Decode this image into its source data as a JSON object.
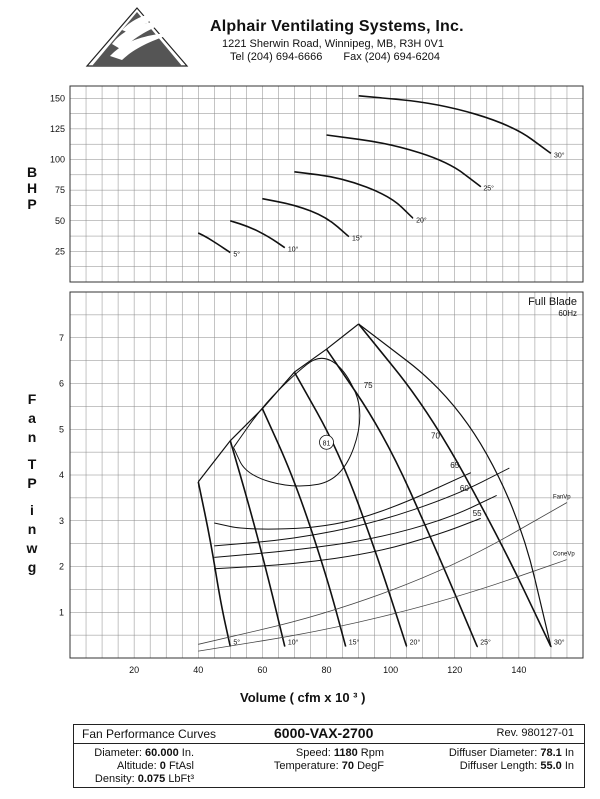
{
  "header": {
    "company": "Alphair Ventilating Systems, Inc.",
    "address": "1221 Sherwin Road, Winnipeg, MB, R3H 0V1",
    "tel": "Tel (204) 694-6666",
    "fax": "Fax (204) 694-6204"
  },
  "chart_data": [
    {
      "type": "line",
      "title": "",
      "ylabel": "BHP",
      "xlabel": "",
      "xlim": [
        0,
        160
      ],
      "ylim": [
        0,
        160
      ],
      "yticks": [
        "25",
        "50",
        "75",
        "100",
        "125",
        "150"
      ],
      "series": [
        {
          "name": "5°",
          "x": [
            40,
            43,
            46,
            50
          ],
          "y": [
            40,
            36,
            31,
            24
          ]
        },
        {
          "name": "10°",
          "x": [
            50,
            56,
            62,
            67
          ],
          "y": [
            50,
            45,
            37,
            28
          ]
        },
        {
          "name": "15°",
          "x": [
            60,
            70,
            80,
            87
          ],
          "y": [
            68,
            63,
            53,
            37
          ]
        },
        {
          "name": "20°",
          "x": [
            70,
            85,
            100,
            107
          ],
          "y": [
            90,
            85,
            70,
            52
          ]
        },
        {
          "name": "25°",
          "x": [
            80,
            100,
            118,
            128
          ],
          "y": [
            120,
            113,
            98,
            78
          ]
        },
        {
          "name": "30°",
          "x": [
            90,
            115,
            138,
            150
          ],
          "y": [
            152,
            146,
            128,
            105
          ]
        }
      ]
    },
    {
      "type": "line",
      "title": "Full Blade",
      "subtitle": "60Hz",
      "ylabel": "Fan TP in wg",
      "xlabel": "Volume ( cfm x 10 ³ )",
      "xlim": [
        0,
        160
      ],
      "ylim": [
        0,
        8
      ],
      "xticks": [
        "20",
        "40",
        "60",
        "80",
        "100",
        "120",
        "140"
      ],
      "yticks": [
        "1",
        "2",
        "3",
        "4",
        "5",
        "6",
        "7"
      ],
      "series": [
        {
          "name": "5°",
          "x": [
            40,
            44,
            47,
            50
          ],
          "y": [
            3.85,
            2.5,
            1.2,
            0.25
          ]
        },
        {
          "name": "10°",
          "x": [
            50,
            56,
            62,
            67
          ],
          "y": [
            4.75,
            3.3,
            1.7,
            0.25
          ]
        },
        {
          "name": "15°",
          "x": [
            60,
            70,
            80,
            86
          ],
          "y": [
            5.45,
            3.9,
            1.8,
            0.25
          ]
        },
        {
          "name": "20°",
          "x": [
            70,
            84,
            96,
            105
          ],
          "y": [
            6.25,
            4.5,
            2.2,
            0.25
          ]
        },
        {
          "name": "25°",
          "x": [
            80,
            98,
            114,
            127
          ],
          "y": [
            6.75,
            4.9,
            2.4,
            0.25
          ]
        },
        {
          "name": "30°",
          "x": [
            90,
            112,
            134,
            150
          ],
          "y": [
            7.3,
            5.4,
            2.6,
            0.25
          ]
        },
        {
          "name": "FanVp",
          "x": [
            40,
            80,
            120,
            155
          ],
          "y": [
            0.3,
            0.95,
            2.0,
            3.4
          ]
        },
        {
          "name": "ConeVp",
          "x": [
            40,
            80,
            120,
            155
          ],
          "y": [
            0.15,
            0.6,
            1.3,
            2.15
          ]
        }
      ],
      "efficiency_labels": [
        "81",
        "75",
        "70",
        "65",
        "60",
        "55"
      ]
    }
  ],
  "footer": {
    "title": "Fan Performance Curves",
    "model": "6000-VAX-2700",
    "rev": "Rev. 980127-01",
    "diameter_label": "Diameter:",
    "diameter_value": "60.000",
    "diameter_unit": "In.",
    "altitude_label": "Altitude:",
    "altitude_value": "0",
    "altitude_unit": "FtAsl",
    "density_label": "Density:",
    "density_value": "0.075",
    "density_unit": "LbFt³",
    "speed_label": "Speed:",
    "speed_value": "1180",
    "speed_unit": "Rpm",
    "temperature_label": "Temperature:",
    "temperature_value": "70",
    "temperature_unit": "DegF",
    "diffuser_diameter_label": "Diffuser Diameter:",
    "diffuser_diameter_value": "78.1",
    "diffuser_diameter_unit": "In",
    "diffuser_length_label": "Diffuser Length:",
    "diffuser_length_value": "55.0",
    "diffuser_length_unit": "In"
  }
}
